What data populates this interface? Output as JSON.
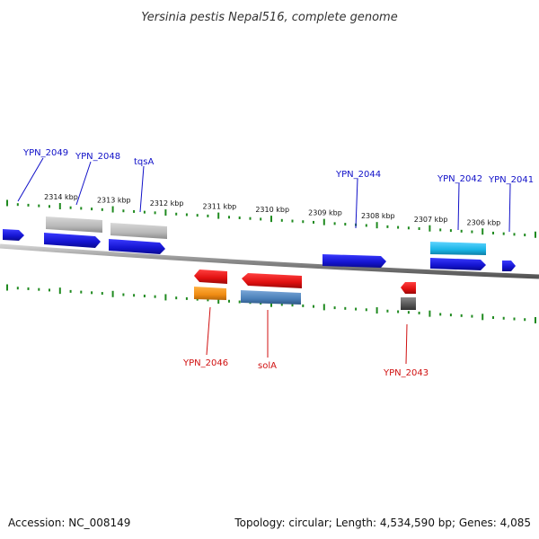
{
  "title": "Yersinia pestis Nepal516, complete genome",
  "footer": {
    "accession": "Accession: NC_008149",
    "summary": "Topology: circular; Length: 4,534,590 bp; Genes: 4,085"
  },
  "colors": {
    "forward_gene": "#1a1adc",
    "reverse_gene": "#e01010",
    "grey_feature": "#b8b8b8",
    "cyan_feature": "#19b4e6",
    "orange_feature": "#f08c14",
    "steel_feature": "#4a7fb8",
    "dark_feature": "#555555",
    "tick": "#1f8a1f",
    "label_forward": "#1010c8",
    "label_reverse": "#d01010",
    "backbone": "#8a8a8a"
  },
  "scale": {
    "unit": "kbp",
    "labels": [
      {
        "kbp": 2314,
        "text": "2314 kbp"
      },
      {
        "kbp": 2313,
        "text": "2313 kbp"
      },
      {
        "kbp": 2312,
        "text": "2312 kbp"
      },
      {
        "kbp": 2311,
        "text": "2311 kbp"
      },
      {
        "kbp": 2310,
        "text": "2310 kbp"
      },
      {
        "kbp": 2309,
        "text": "2309 kbp"
      },
      {
        "kbp": 2308,
        "text": "2308 kbp"
      },
      {
        "kbp": 2307,
        "text": "2307 kbp"
      },
      {
        "kbp": 2306,
        "text": "2306 kbp"
      }
    ]
  },
  "gene_labels": [
    {
      "text": "YPN_2049",
      "strand": "forward"
    },
    {
      "text": "YPN_2048",
      "strand": "forward"
    },
    {
      "text": "tqsA",
      "strand": "forward"
    },
    {
      "text": "YPN_2044",
      "strand": "forward"
    },
    {
      "text": "YPN_2042",
      "strand": "forward"
    },
    {
      "text": "YPN_2041",
      "strand": "forward"
    },
    {
      "text": "YPN_2046",
      "strand": "reverse"
    },
    {
      "text": "solA",
      "strand": "reverse"
    },
    {
      "text": "YPN_2043",
      "strand": "reverse"
    }
  ]
}
